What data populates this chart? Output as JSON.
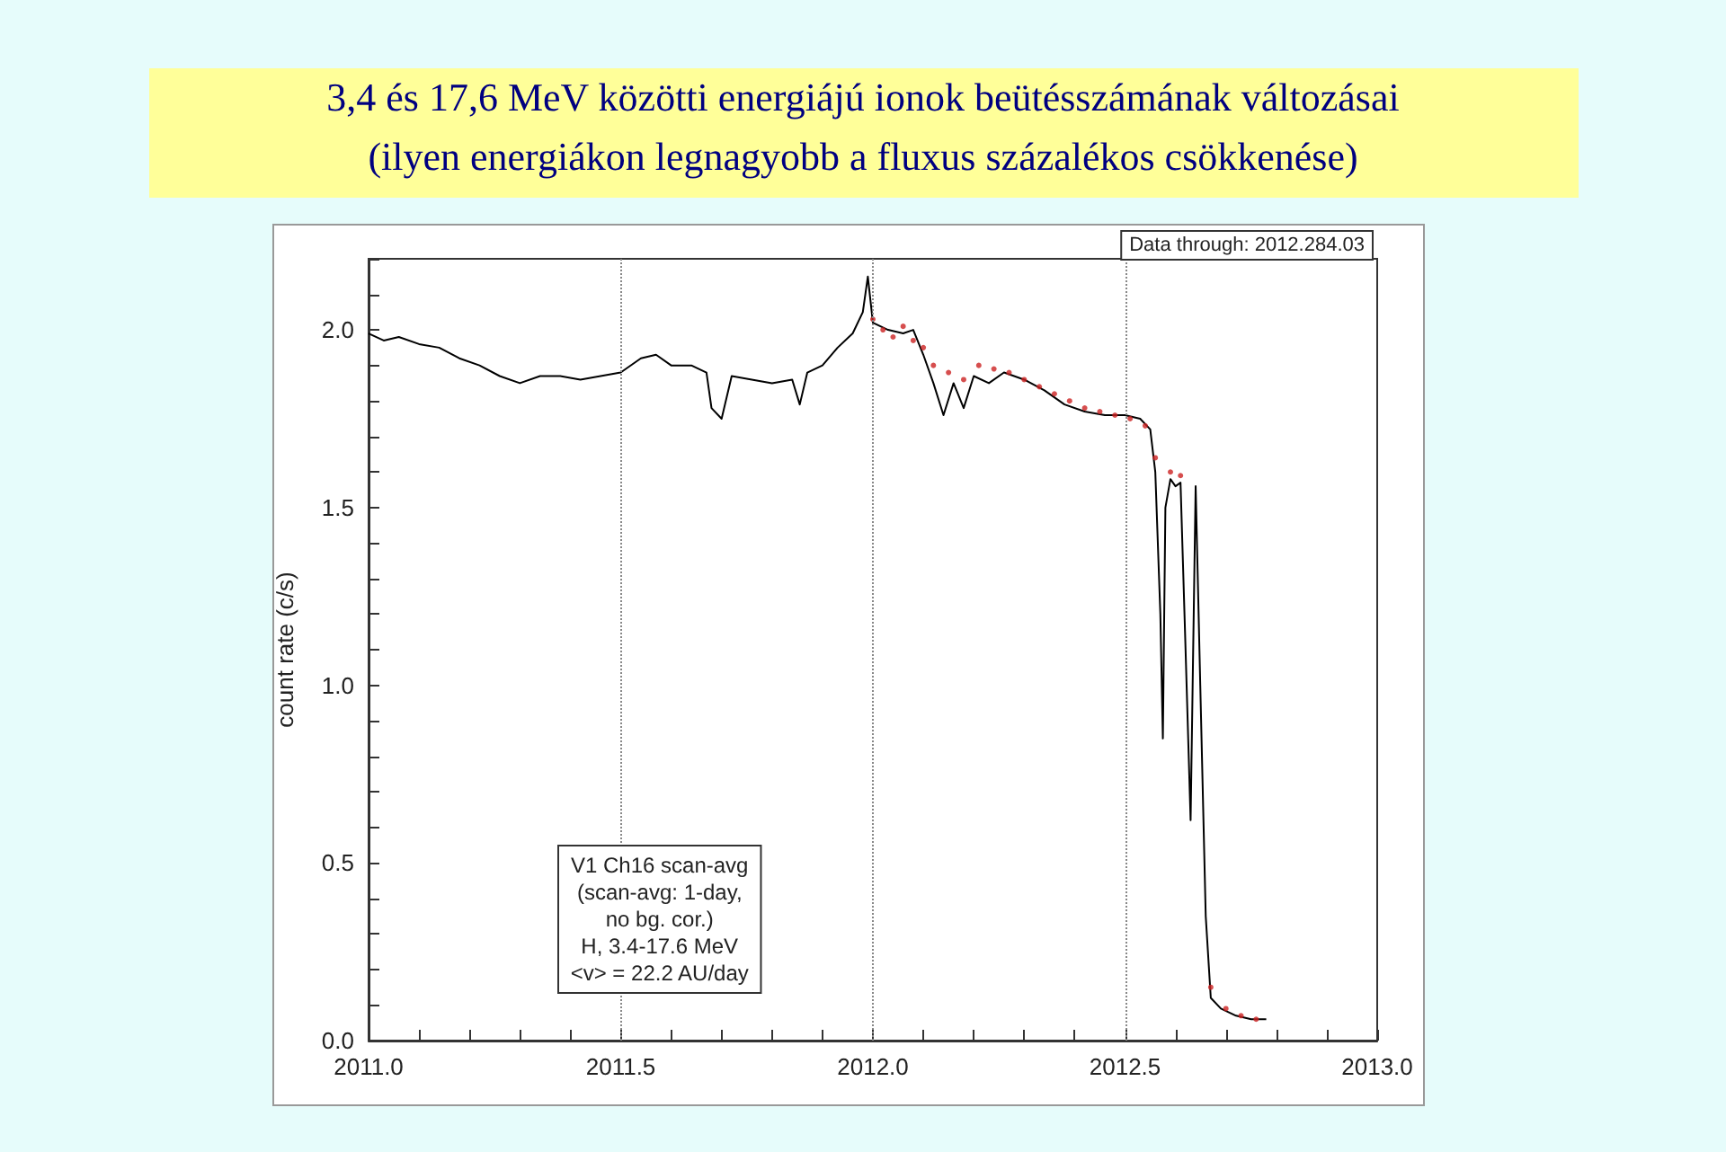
{
  "chart_data": {
    "type": "line",
    "title": "3,4 és 17,6 MeV közötti energiájú ionok beütésszámának változásai",
    "subtitle": "(ilyen energiákon legnagyobb a fluxus százalékos csökkenése)",
    "ylabel": "count rate (c/s)",
    "annotations": [
      "Data through: 2012.284.03",
      "V1 Ch16 scan-avg\n(scan-avg: 1-day,\nno bg. cor.)\nH, 3.4-17.6 MeV\n<v> = 22.2 AU/day"
    ],
    "xlim": [
      2011,
      2013
    ],
    "ylim": [
      0,
      2.2
    ],
    "xticks": [
      {
        "value": 2011,
        "label": "2011.0"
      },
      {
        "value": 2011.1,
        "label": null
      },
      {
        "value": 2011.2,
        "label": null
      },
      {
        "value": 2011.3,
        "label": null
      },
      {
        "value": 2011.4,
        "label": null
      },
      {
        "value": 2011.5,
        "label": "2011.5"
      },
      {
        "value": 2011.6,
        "label": null
      },
      {
        "value": 2011.7,
        "label": null
      },
      {
        "value": 2011.8,
        "label": null
      },
      {
        "value": 2011.9,
        "label": null
      },
      {
        "value": 2012,
        "label": "2012.0"
      },
      {
        "value": 2012.1,
        "label": null
      },
      {
        "value": 2012.2,
        "label": null
      },
      {
        "value": 2012.3,
        "label": null
      },
      {
        "value": 2012.4,
        "label": null
      },
      {
        "value": 2012.5,
        "label": "2012.5"
      },
      {
        "value": 2012.6,
        "label": null
      },
      {
        "value": 2012.7,
        "label": null
      },
      {
        "value": 2012.8,
        "label": null
      },
      {
        "value": 2012.9,
        "label": null
      },
      {
        "value": 2013,
        "label": "2013.0"
      }
    ],
    "yticks": [
      {
        "value": 0,
        "label": "0.0"
      },
      {
        "value": 0.1,
        "label": null
      },
      {
        "value": 0.2,
        "label": null
      },
      {
        "value": 0.3,
        "label": null
      },
      {
        "value": 0.4,
        "label": null
      },
      {
        "value": 0.5,
        "label": "0.5"
      },
      {
        "value": 0.6,
        "label": null
      },
      {
        "value": 0.7,
        "label": null
      },
      {
        "value": 0.8,
        "label": null
      },
      {
        "value": 0.9,
        "label": null
      },
      {
        "value": 1,
        "label": "1.0"
      },
      {
        "value": 1.1,
        "label": null
      },
      {
        "value": 1.2,
        "label": null
      },
      {
        "value": 1.3,
        "label": null
      },
      {
        "value": 1.4,
        "label": null
      },
      {
        "value": 1.5,
        "label": "1.5"
      },
      {
        "value": 1.6,
        "label": null
      },
      {
        "value": 1.7,
        "label": null
      },
      {
        "value": 1.8,
        "label": null
      },
      {
        "value": 1.9,
        "label": null
      },
      {
        "value": 2,
        "label": "2.0"
      },
      {
        "value": 2.1,
        "label": null
      },
      {
        "value": 2.2,
        "label": null
      }
    ],
    "ref_lines": [
      {
        "axis": "x",
        "value": 2011.5,
        "color": "#888888",
        "line_style": "dotted"
      },
      {
        "axis": "x",
        "value": 2012,
        "color": "#888888",
        "line_style": "dotted"
      },
      {
        "axis": "x",
        "value": 2012.5,
        "color": "#888888",
        "line_style": "dotted"
      }
    ],
    "grid": false,
    "marker": "none",
    "line_style": "solid",
    "series": [
      {
        "color": "#000000",
        "x": [
          2011,
          2011.03,
          2011.06,
          2011.1,
          2011.14,
          2011.18,
          2011.22,
          2011.26,
          2011.3,
          2011.34,
          2011.38,
          2011.42,
          2011.46,
          2011.5,
          2011.54,
          2011.57,
          2011.6,
          2011.64,
          2011.67,
          2011.68,
          2011.7,
          2011.72,
          2011.76,
          2011.8,
          2011.84,
          2011.855,
          2011.87,
          2011.9,
          2011.93,
          2011.96,
          2011.98,
          2011.99,
          2012,
          2012.03,
          2012.06,
          2012.08,
          2012.1,
          2012.12,
          2012.14,
          2012.16,
          2012.18,
          2012.2,
          2012.23,
          2012.26,
          2012.3,
          2012.34,
          2012.38,
          2012.42,
          2012.46,
          2012.5,
          2012.53,
          2012.55,
          2012.56,
          2012.57,
          2012.575,
          2012.58,
          2012.59,
          2012.6,
          2012.61,
          2012.62,
          2012.63,
          2012.64,
          2012.65,
          2012.66,
          2012.67,
          2012.69,
          2012.72,
          2012.75,
          2012.78
        ],
        "values": [
          1.99,
          1.97,
          1.98,
          1.96,
          1.95,
          1.92,
          1.9,
          1.87,
          1.85,
          1.87,
          1.87,
          1.86,
          1.87,
          1.88,
          1.92,
          1.93,
          1.9,
          1.9,
          1.88,
          1.78,
          1.75,
          1.87,
          1.86,
          1.85,
          1.86,
          1.79,
          1.88,
          1.9,
          1.95,
          1.99,
          2.05,
          2.15,
          2.02,
          2,
          1.99,
          2,
          1.93,
          1.85,
          1.76,
          1.85,
          1.78,
          1.87,
          1.85,
          1.88,
          1.86,
          1.83,
          1.79,
          1.77,
          1.76,
          1.76,
          1.75,
          1.72,
          1.6,
          1.2,
          0.85,
          1.5,
          1.58,
          1.56,
          1.57,
          1.1,
          0.62,
          1.56,
          0.95,
          0.35,
          0.12,
          0.09,
          0.07,
          0.06,
          0.06
        ]
      },
      {
        "type": "scatter",
        "color": "#cc2222",
        "marker": "circle",
        "x": [
          2012,
          2012.02,
          2012.04,
          2012.06,
          2012.08,
          2012.1,
          2012.12,
          2012.15,
          2012.18,
          2012.21,
          2012.24,
          2012.27,
          2012.3,
          2012.33,
          2012.36,
          2012.39,
          2012.42,
          2012.45,
          2012.48,
          2012.51,
          2012.54,
          2012.56,
          2012.59,
          2012.61,
          2012.67,
          2012.7,
          2012.73,
          2012.76
        ],
        "values": [
          2.03,
          2,
          1.98,
          2.01,
          1.97,
          1.95,
          1.9,
          1.88,
          1.86,
          1.9,
          1.89,
          1.88,
          1.86,
          1.84,
          1.82,
          1.8,
          1.78,
          1.77,
          1.76,
          1.75,
          1.73,
          1.64,
          1.6,
          1.59,
          0.15,
          0.09,
          0.07,
          0.06
        ]
      }
    ]
  }
}
